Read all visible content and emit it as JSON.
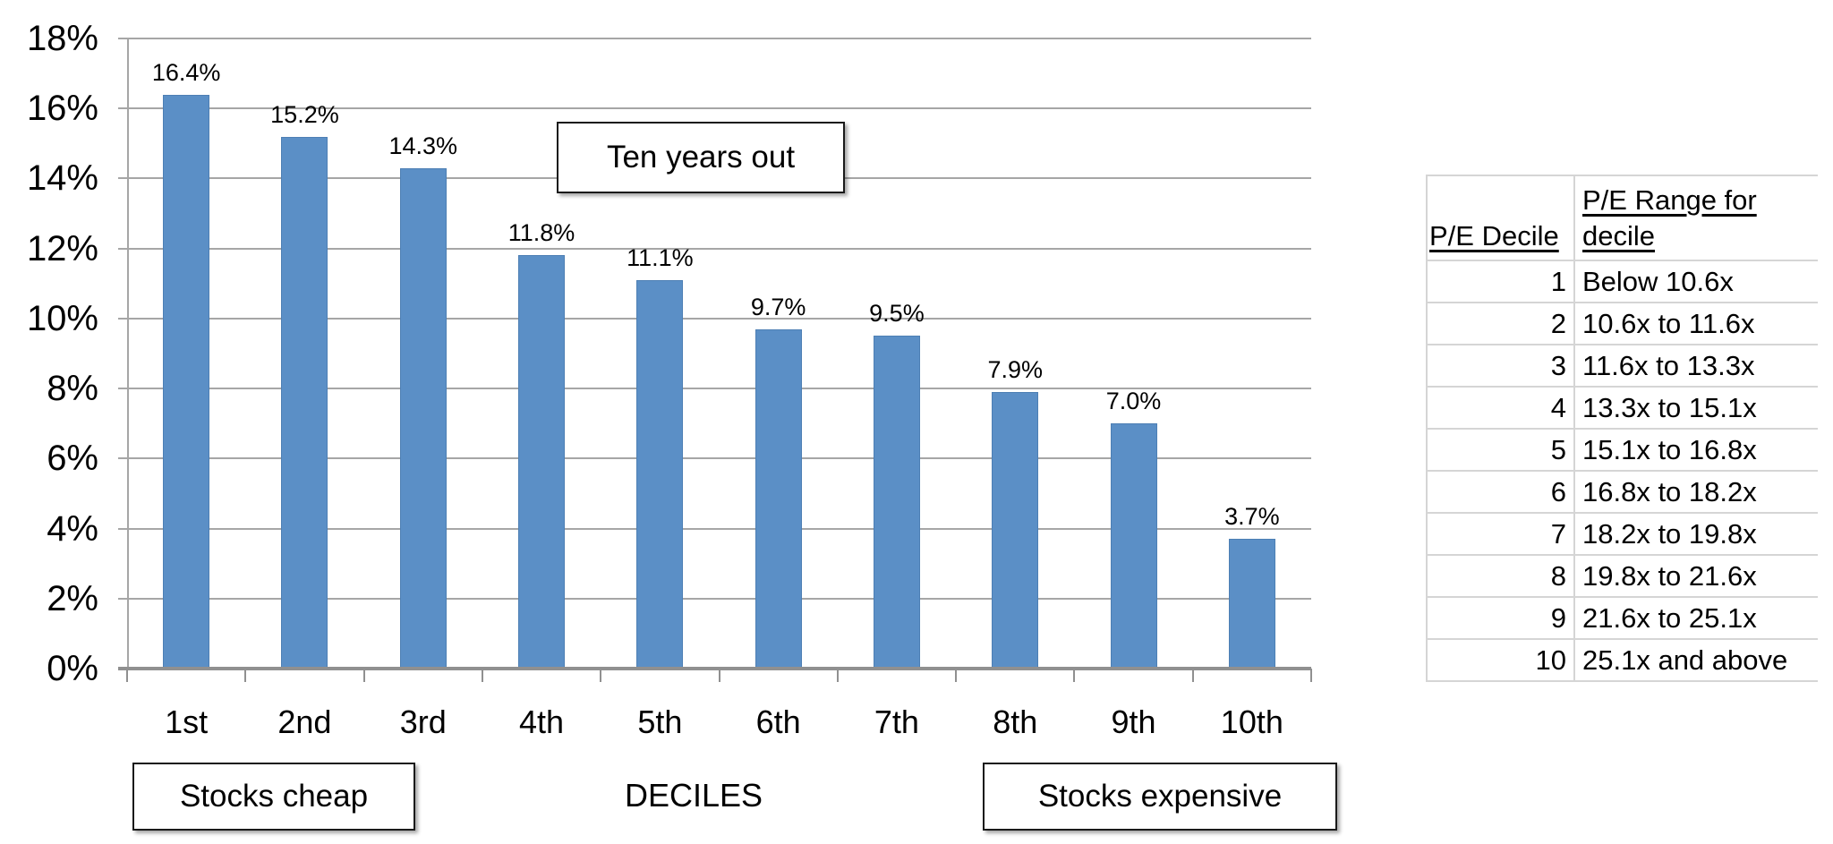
{
  "chart": {
    "annotation_box": "Ten years out",
    "footer_left": "Stocks cheap",
    "footer_right": "Stocks expensive",
    "xlabel": "DECILES"
  },
  "chart_data": {
    "type": "bar",
    "title": "",
    "xlabel": "DECILES",
    "ylabel": "",
    "categories": [
      "1st",
      "2nd",
      "3rd",
      "4th",
      "5th",
      "6th",
      "7th",
      "8th",
      "9th",
      "10th"
    ],
    "values": [
      16.4,
      15.2,
      14.3,
      11.8,
      11.1,
      9.7,
      9.5,
      7.9,
      7.0,
      3.7
    ],
    "data_labels": [
      "16.4%",
      "15.2%",
      "14.3%",
      "11.8%",
      "11.1%",
      "9.7%",
      "9.5%",
      "7.9%",
      "7.0%",
      "3.7%"
    ],
    "ylim": [
      0,
      18
    ],
    "ytick_step": 2,
    "yticks": [
      "0%",
      "2%",
      "4%",
      "6%",
      "8%",
      "10%",
      "12%",
      "14%",
      "16%",
      "18%"
    ],
    "grid": true,
    "legend": "none",
    "bar_color": "#5b8fc6",
    "annotations": [
      "Ten years out",
      "Stocks cheap",
      "Stocks expensive"
    ]
  },
  "table": {
    "headers": [
      "P/E Decile",
      "P/E Range for decile"
    ],
    "rows": [
      [
        "1",
        "Below 10.6x"
      ],
      [
        "2",
        "10.6x to 11.6x"
      ],
      [
        "3",
        "11.6x to 13.3x"
      ],
      [
        "4",
        "13.3x to 15.1x"
      ],
      [
        "5",
        "15.1x to 16.8x"
      ],
      [
        "6",
        "16.8x to 18.2x"
      ],
      [
        "7",
        "18.2x to 19.8x"
      ],
      [
        "8",
        "19.8x to 21.6x"
      ],
      [
        "9",
        "21.6x to 25.1x"
      ],
      [
        "10",
        "25.1x and above"
      ]
    ]
  },
  "colors": {
    "bar": "#5b8fc6",
    "bar_border": "#4d7fb4",
    "gridline": "#a6a6a6",
    "axis": "#909090",
    "table_border": "#d5d5d5",
    "text": "#000000"
  }
}
